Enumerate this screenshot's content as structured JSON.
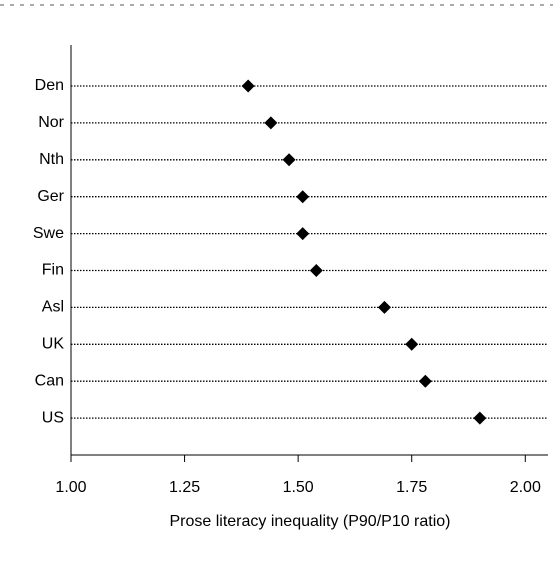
{
  "chart_data": {
    "type": "dot",
    "x_label": "Prose literacy inequality (P90/P10 ratio)",
    "categories": [
      "Den",
      "Nor",
      "Nth",
      "Ger",
      "Swe",
      "Fin",
      "Asl",
      "UK",
      "Can",
      "US"
    ],
    "values": [
      1.39,
      1.44,
      1.48,
      1.51,
      1.51,
      1.54,
      1.69,
      1.75,
      1.78,
      1.9
    ],
    "color": "#000000",
    "xlim": [
      1,
      2.05
    ],
    "xticks": [
      {
        "value": 1,
        "label": "1.00"
      },
      1.25,
      {
        "value": 1.5,
        "label": "1.50"
      },
      1.75,
      {
        "value": 2,
        "label": "2.00"
      }
    ]
  }
}
